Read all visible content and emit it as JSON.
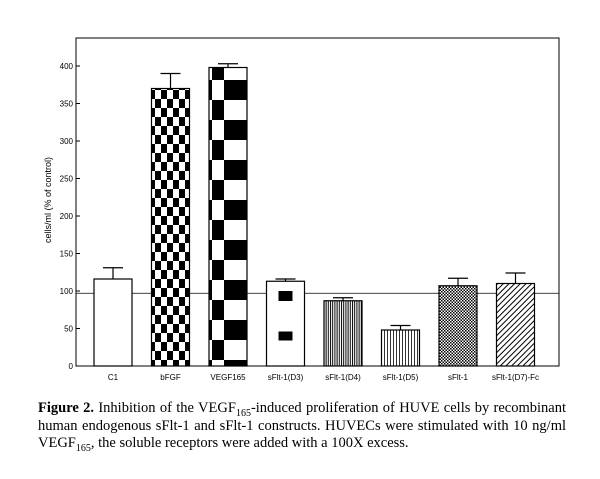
{
  "chart_data": {
    "type": "bar",
    "ylabel": "cells/ml (% of control)",
    "ylim": [
      0,
      420
    ],
    "yticks": [
      0,
      50,
      100,
      150,
      200,
      250,
      300,
      350,
      400
    ],
    "reference_line": 97,
    "categories": [
      "C1",
      "bFGF",
      "VEGF165",
      "sFlt-1(D3)",
      "sFlt-1(D4)",
      "sFlt-1(D5)",
      "sFlt-1",
      "sFlt-1(D7)-Fc"
    ],
    "values": [
      116,
      370,
      398,
      113,
      87,
      48,
      107,
      110
    ],
    "errors": [
      15,
      20,
      5,
      3,
      4,
      6,
      10,
      14
    ],
    "patterns": [
      "plain",
      "checker-small",
      "checker-large",
      "blocks",
      "vertical-dense",
      "vertical-sparse",
      "crosshatch",
      "diagonal"
    ]
  },
  "caption": {
    "label": "Figure 2.",
    "text_1": " Inhibition of the VEGF",
    "sub_1": "165",
    "text_2": "-induced proliferation of HUVE cells by recombinant human endogenous sFlt-1 and sFlt-1 constructs. HUVECs were stimulated with 10 ng/ml VEGF",
    "sub_2": "165",
    "text_3": ", the soluble receptors were added with a 100X excess."
  }
}
